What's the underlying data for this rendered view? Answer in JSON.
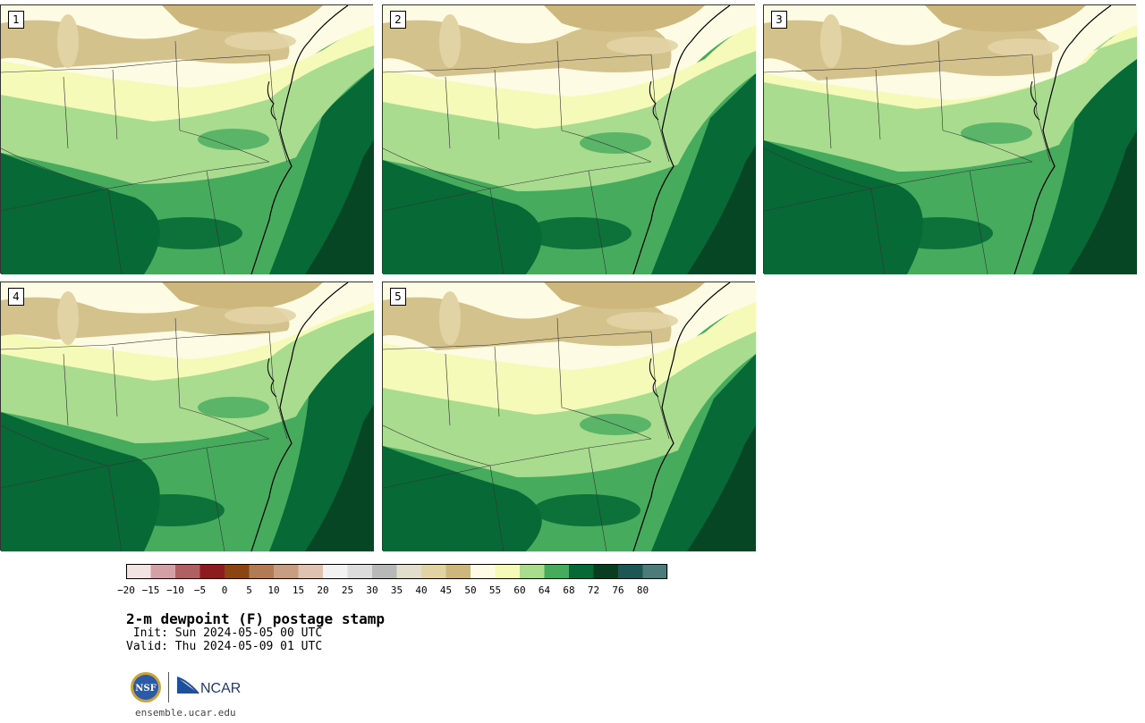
{
  "panels": [
    {
      "label": "1"
    },
    {
      "label": "2"
    },
    {
      "label": "3"
    },
    {
      "label": "4"
    },
    {
      "label": "5"
    }
  ],
  "colorbar": {
    "colors": [
      "#f3e4e4",
      "#d2a0a5",
      "#b06062",
      "#8c1c1f",
      "#8b4513",
      "#b07b55",
      "#c89e82",
      "#dfc2b0",
      "#f2f2f2",
      "#dcdcdc",
      "#b8b8b8",
      "#e1dfcc",
      "#e2d3a5",
      "#cdb77c",
      "#fefbe4",
      "#f6fab8",
      "#a9dc8f",
      "#47ab5e",
      "#076a36",
      "#083d22",
      "#1c5655",
      "#4d7b7a"
    ],
    "tick_labels": [
      "−20",
      "−15",
      "−10",
      "−5",
      "0",
      "5",
      "10",
      "15",
      "20",
      "25",
      "30",
      "35",
      "40",
      "45",
      "50",
      "55",
      "60",
      "64",
      "68",
      "72",
      "76",
      "80"
    ]
  },
  "title": "2-m dewpoint (F) postage stamp",
  "init": " Init: Sun 2024-05-05 00 UTC",
  "valid": "Valid: Thu 2024-05-09 01 UTC",
  "logos": {
    "nsf": "NSF",
    "ncar": "NCAR"
  },
  "footer_url": "ensemble.ucar.edu"
}
